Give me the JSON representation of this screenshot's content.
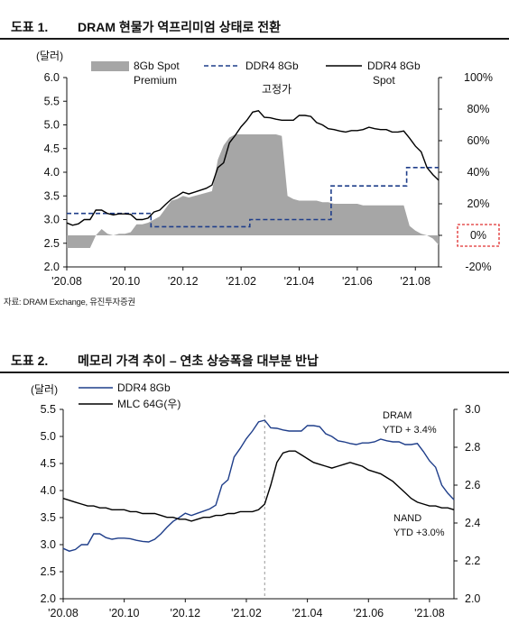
{
  "figure1": {
    "number": "도표 1.",
    "title": "DRAM 현물가 역프리미엄 상태로 전환",
    "source": "자료: DRAM Exchange, 유진투자증권"
  },
  "figure2": {
    "number": "도표 2.",
    "title": "메모리 가격 추이 – 연초 상승폭을 대부분 반납"
  },
  "colors": {
    "premium_fill": "#a6a6a6",
    "fixed_line": "#1f3e8a",
    "spot_line": "#000000",
    "ddr4_line": "#1f3e8a",
    "mlc_line": "#000000",
    "highlight_box": "#e03030",
    "vline": "#999999"
  },
  "chart_data": [
    {
      "type": "line",
      "unit_label": "(달러)",
      "x_ticks": [
        "'20.08",
        "'20.10",
        "'20.12",
        "'21.02",
        "'21.04",
        "'21.06",
        "'21.08"
      ],
      "y_left": {
        "ticks": [
          "2.0",
          "2.5",
          "3.0",
          "3.5",
          "4.0",
          "4.5",
          "5.0",
          "5.5",
          "6.0"
        ],
        "range": [
          2.0,
          6.0
        ]
      },
      "y_right": {
        "ticks": [
          "-20%",
          "0%",
          "20%",
          "40%",
          "60%",
          "80%",
          "100%"
        ],
        "range": [
          -20,
          100
        ]
      },
      "right_highlight": "0%",
      "series": [
        {
          "name": "8Gb Spot Premium",
          "legend_lines": [
            "8Gb Spot",
            "Premium"
          ],
          "kind": "area",
          "axis": "right",
          "x": [
            0.0,
            0.1,
            0.2,
            0.3,
            0.4,
            0.5,
            0.6,
            0.7,
            0.8,
            0.9,
            1.0,
            1.1,
            1.2,
            1.3,
            1.4,
            1.5,
            1.6,
            1.7,
            1.8,
            1.9,
            2.0,
            2.1,
            2.2,
            2.3,
            2.4,
            2.5,
            2.6,
            2.7,
            2.8,
            2.9,
            3.0,
            3.1,
            3.2,
            3.3,
            3.4,
            3.5,
            3.6,
            3.7,
            3.8,
            3.9,
            4.0,
            4.1,
            4.2,
            4.3,
            4.4,
            4.5,
            4.6,
            4.7,
            4.8,
            4.9,
            5.0,
            5.1,
            5.2,
            5.3,
            5.4,
            5.5,
            5.6,
            5.7,
            5.8,
            5.9,
            6.0,
            6.1,
            6.2,
            6.3,
            6.4
          ],
          "values": [
            -8,
            -8,
            -8,
            -8,
            -8,
            0,
            4,
            1,
            0,
            1,
            1,
            2,
            7,
            7,
            8,
            10,
            12,
            17,
            22,
            23,
            25,
            24,
            25,
            26,
            27,
            28,
            48,
            57,
            62,
            64,
            64,
            64,
            64,
            64,
            64,
            64,
            64,
            63,
            25,
            23,
            22,
            22,
            22,
            22,
            21,
            21,
            20,
            20,
            20,
            20,
            20,
            19,
            19,
            19,
            19,
            19,
            19,
            19,
            19,
            6,
            3,
            1,
            0,
            -2,
            -6
          ]
        },
        {
          "name": "DDR4 8Gb 고정가",
          "legend_lines": [
            "DDR4 8Gb",
            "고정가"
          ],
          "kind": "dashed",
          "axis": "left",
          "x": [
            0.0,
            1.45,
            1.45,
            3.15,
            3.15,
            4.55,
            4.55,
            5.85,
            5.85,
            6.4
          ],
          "values": [
            3.13,
            3.13,
            2.85,
            2.85,
            3.0,
            3.0,
            3.71,
            3.71,
            4.1,
            4.1
          ]
        },
        {
          "name": "DDR4 8Gb Spot",
          "legend_lines": [
            "DDR4 8Gb",
            "Spot"
          ],
          "kind": "solid",
          "axis": "left",
          "x": [
            0.0,
            0.1,
            0.2,
            0.3,
            0.4,
            0.5,
            0.6,
            0.7,
            0.8,
            0.9,
            1.0,
            1.1,
            1.2,
            1.3,
            1.4,
            1.5,
            1.6,
            1.7,
            1.8,
            1.9,
            2.0,
            2.1,
            2.2,
            2.3,
            2.4,
            2.5,
            2.6,
            2.7,
            2.8,
            2.9,
            3.0,
            3.1,
            3.2,
            3.3,
            3.4,
            3.5,
            3.6,
            3.7,
            3.8,
            3.9,
            4.0,
            4.1,
            4.2,
            4.3,
            4.4,
            4.5,
            4.6,
            4.7,
            4.8,
            4.9,
            5.0,
            5.1,
            5.2,
            5.3,
            5.4,
            5.5,
            5.6,
            5.7,
            5.8,
            5.9,
            6.0,
            6.1,
            6.2,
            6.3,
            6.4
          ],
          "values": [
            2.93,
            2.88,
            2.91,
            3.0,
            3.0,
            3.2,
            3.2,
            3.13,
            3.1,
            3.12,
            3.12,
            3.11,
            3.0,
            3.0,
            3.03,
            3.16,
            3.2,
            3.32,
            3.43,
            3.5,
            3.58,
            3.54,
            3.58,
            3.62,
            3.66,
            3.73,
            4.1,
            4.2,
            4.62,
            4.78,
            4.96,
            5.1,
            5.27,
            5.3,
            5.16,
            5.15,
            5.12,
            5.1,
            5.1,
            5.1,
            5.2,
            5.2,
            5.18,
            5.05,
            5.0,
            4.92,
            4.9,
            4.87,
            4.85,
            4.88,
            4.88,
            4.9,
            4.95,
            4.92,
            4.9,
            4.9,
            4.85,
            4.85,
            4.87,
            4.72,
            4.55,
            4.43,
            4.1,
            3.95,
            3.83
          ]
        }
      ]
    },
    {
      "type": "line",
      "unit_label": "(달러)",
      "x_ticks": [
        "'20.08",
        "'20.10",
        "'20.12",
        "'21.02",
        "'21.04",
        "'21.06",
        "'21.08"
      ],
      "y_left": {
        "ticks": [
          "2.0",
          "2.5",
          "3.0",
          "3.5",
          "4.0",
          "4.5",
          "5.0",
          "5.5"
        ],
        "range": [
          2.0,
          5.5
        ]
      },
      "y_right": {
        "ticks": [
          "2.0",
          "2.2",
          "2.4",
          "2.6",
          "2.8",
          "3.0"
        ],
        "range": [
          2.0,
          3.0
        ]
      },
      "annotations": {
        "dram": [
          "DRAM",
          "YTD + 3.4%"
        ],
        "nand": [
          "NAND",
          "YTD +3.0%"
        ]
      },
      "series": [
        {
          "name": "DDR4 8Gb",
          "axis": "left",
          "x": [
            0.0,
            0.1,
            0.2,
            0.3,
            0.4,
            0.5,
            0.6,
            0.7,
            0.8,
            0.9,
            1.0,
            1.1,
            1.2,
            1.3,
            1.4,
            1.5,
            1.6,
            1.7,
            1.8,
            1.9,
            2.0,
            2.1,
            2.2,
            2.3,
            2.4,
            2.5,
            2.6,
            2.7,
            2.8,
            2.9,
            3.0,
            3.1,
            3.2,
            3.3,
            3.4,
            3.5,
            3.6,
            3.7,
            3.8,
            3.9,
            4.0,
            4.1,
            4.2,
            4.3,
            4.4,
            4.5,
            4.6,
            4.7,
            4.8,
            4.9,
            5.0,
            5.1,
            5.2,
            5.3,
            5.4,
            5.5,
            5.6,
            5.7,
            5.8,
            5.9,
            6.0,
            6.1,
            6.2,
            6.3,
            6.4
          ],
          "values": [
            2.93,
            2.88,
            2.91,
            3.0,
            3.0,
            3.2,
            3.2,
            3.13,
            3.1,
            3.12,
            3.12,
            3.11,
            3.08,
            3.06,
            3.05,
            3.1,
            3.2,
            3.32,
            3.43,
            3.5,
            3.58,
            3.54,
            3.58,
            3.62,
            3.66,
            3.73,
            4.1,
            4.2,
            4.62,
            4.78,
            4.96,
            5.1,
            5.27,
            5.3,
            5.16,
            5.15,
            5.12,
            5.1,
            5.1,
            5.1,
            5.2,
            5.2,
            5.18,
            5.05,
            5.0,
            4.92,
            4.9,
            4.87,
            4.85,
            4.88,
            4.88,
            4.9,
            4.95,
            4.92,
            4.9,
            4.9,
            4.85,
            4.85,
            4.87,
            4.72,
            4.55,
            4.43,
            4.1,
            3.95,
            3.83
          ]
        },
        {
          "name": "MLC 64G(우)",
          "axis": "right",
          "x": [
            0.0,
            0.1,
            0.2,
            0.3,
            0.4,
            0.5,
            0.6,
            0.7,
            0.8,
            0.9,
            1.0,
            1.1,
            1.2,
            1.3,
            1.4,
            1.5,
            1.6,
            1.7,
            1.8,
            1.9,
            2.0,
            2.1,
            2.2,
            2.3,
            2.4,
            2.5,
            2.6,
            2.7,
            2.8,
            2.9,
            3.0,
            3.1,
            3.2,
            3.3,
            3.4,
            3.5,
            3.6,
            3.7,
            3.8,
            3.9,
            4.0,
            4.1,
            4.2,
            4.3,
            4.4,
            4.5,
            4.6,
            4.7,
            4.8,
            4.9,
            5.0,
            5.1,
            5.2,
            5.3,
            5.4,
            5.5,
            5.6,
            5.7,
            5.8,
            5.9,
            6.0,
            6.1,
            6.2,
            6.3,
            6.4
          ],
          "values": [
            2.53,
            2.52,
            2.51,
            2.5,
            2.49,
            2.49,
            2.48,
            2.48,
            2.47,
            2.47,
            2.47,
            2.46,
            2.46,
            2.45,
            2.45,
            2.45,
            2.44,
            2.43,
            2.43,
            2.42,
            2.42,
            2.41,
            2.42,
            2.43,
            2.43,
            2.44,
            2.44,
            2.45,
            2.45,
            2.46,
            2.46,
            2.46,
            2.47,
            2.5,
            2.6,
            2.72,
            2.77,
            2.78,
            2.78,
            2.76,
            2.74,
            2.72,
            2.71,
            2.7,
            2.69,
            2.7,
            2.71,
            2.72,
            2.71,
            2.7,
            2.68,
            2.67,
            2.66,
            2.64,
            2.62,
            2.59,
            2.56,
            2.53,
            2.51,
            2.5,
            2.49,
            2.49,
            2.48,
            2.48,
            2.47
          ]
        }
      ],
      "vline_x": 3.3
    }
  ]
}
